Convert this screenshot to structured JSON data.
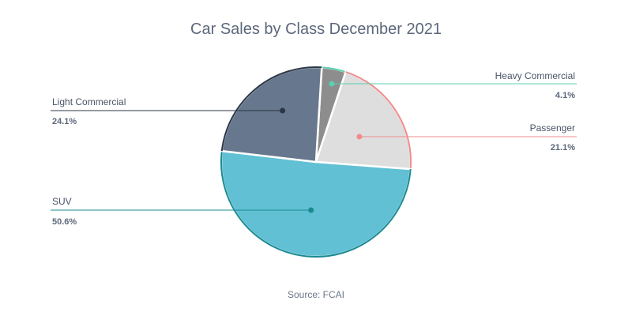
{
  "chart_data": {
    "type": "pie",
    "title": "Car Sales by Class December 2021",
    "source": "Source: FCAI",
    "slices": [
      {
        "label": "Heavy Commercial",
        "value": 4.1,
        "value_label": "4.1%",
        "color": "#8d8d8d",
        "stroke": "#5bcfb0"
      },
      {
        "label": "Passenger",
        "value": 21.1,
        "value_label": "21.1%",
        "color": "#dedede",
        "stroke": "#f28b8b"
      },
      {
        "label": "SUV",
        "value": 50.6,
        "value_label": "50.6%",
        "color": "#62c0d5",
        "stroke": "#1a8a91"
      },
      {
        "label": "Light Commercial",
        "value": 24.1,
        "value_label": "24.1%",
        "color": "#67778d",
        "stroke": "#2b3645"
      }
    ]
  }
}
